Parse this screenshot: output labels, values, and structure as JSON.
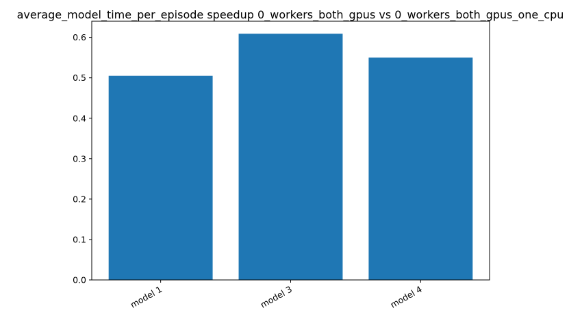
{
  "chart_data": {
    "type": "bar",
    "title": "average_model_time_per_episode speedup 0_workers_both_gpus vs 0_workers_both_gpus_one_cpu",
    "xlabel": "",
    "ylabel": "",
    "categories": [
      "model 1",
      "model 3",
      "model 4"
    ],
    "values": [
      0.505,
      0.609,
      0.55
    ],
    "ylim": [
      0,
      0.64
    ],
    "yticks": [
      0.0,
      0.1,
      0.2,
      0.3,
      0.4,
      0.5,
      0.6
    ],
    "ytick_labels": [
      "0.0",
      "0.1",
      "0.2",
      "0.3",
      "0.4",
      "0.5",
      "0.6"
    ],
    "bar_color": "#1f77b4",
    "grid": false,
    "legend": "none"
  }
}
